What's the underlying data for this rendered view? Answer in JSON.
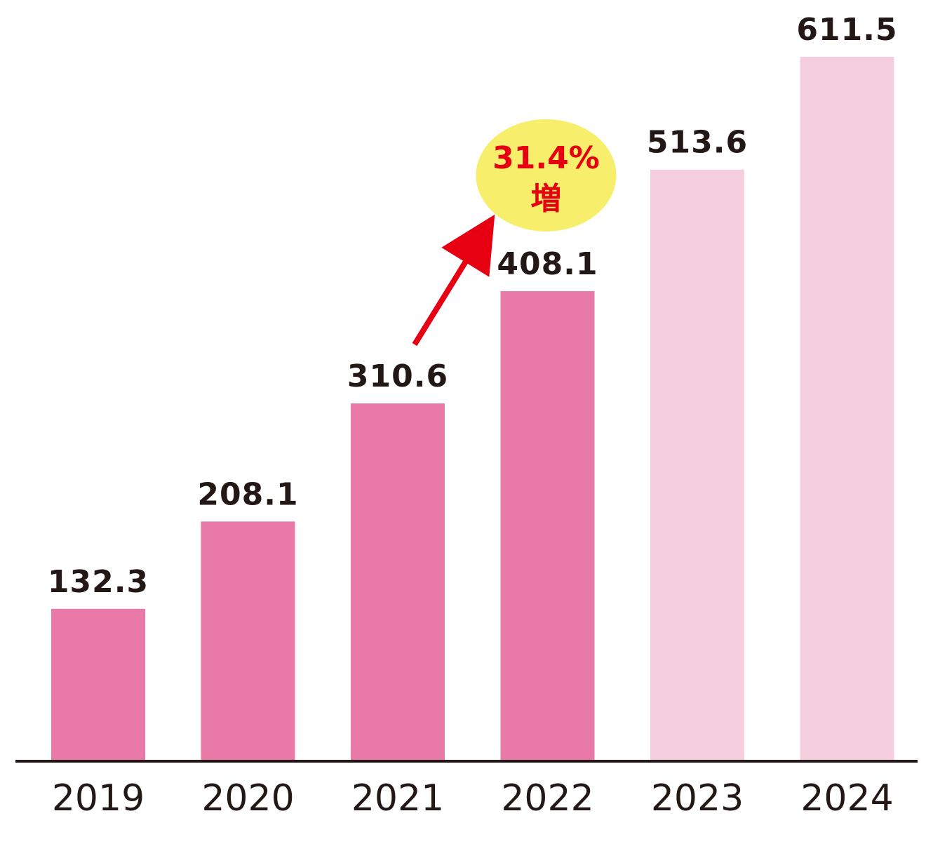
{
  "chart_data": {
    "type": "bar",
    "categories": [
      "2019",
      "2020",
      "2021",
      "2022",
      "2023",
      "2024"
    ],
    "values": [
      132.3,
      208.1,
      310.6,
      408.1,
      513.6,
      611.5
    ],
    "value_labels": [
      "132.3",
      "208.1",
      "310.6",
      "408.1",
      "513.6",
      "611.5"
    ],
    "bar_colors": [
      "#e97aa7",
      "#e97aa7",
      "#e97aa7",
      "#e97aa7",
      "#f6cfdf",
      "#f6cfdf"
    ],
    "ylim": [
      0,
      640
    ],
    "grid": false,
    "axis_color": "#231815",
    "annotation": {
      "text_line1": "31.4%",
      "text_line2": "増",
      "from_category": "2021",
      "to_category": "2022",
      "bubble_color": "#f7ef6b",
      "arrow_color": "#e60012",
      "text_color": "#e60012"
    }
  }
}
